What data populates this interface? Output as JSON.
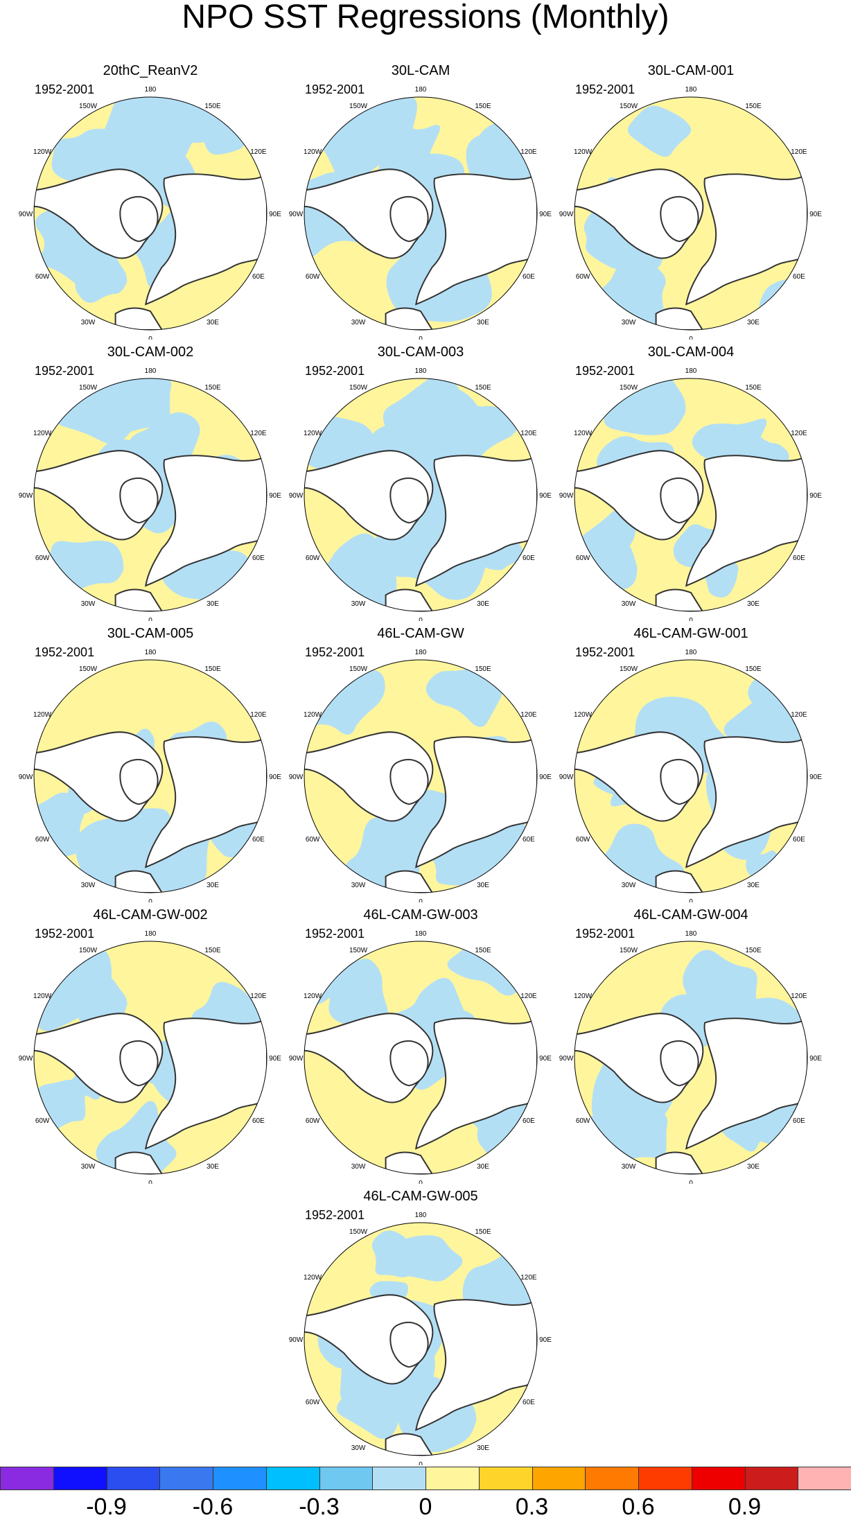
{
  "title": "NPO SST Regressions (Monthly)",
  "panels": [
    {
      "name": "20thC_ReanV2",
      "period": "1952-2001"
    },
    {
      "name": "30L-CAM",
      "period": "1952-2001"
    },
    {
      "name": "30L-CAM-001",
      "period": "1952-2001"
    },
    {
      "name": "30L-CAM-002",
      "period": "1952-2001"
    },
    {
      "name": "30L-CAM-003",
      "period": "1952-2001"
    },
    {
      "name": "30L-CAM-004",
      "period": "1952-2001"
    },
    {
      "name": "30L-CAM-005",
      "period": "1952-2001"
    },
    {
      "name": "46L-CAM-GW",
      "period": "1952-2001"
    },
    {
      "name": "46L-CAM-GW-001",
      "period": "1952-2001"
    },
    {
      "name": "46L-CAM-GW-002",
      "period": "1952-2001"
    },
    {
      "name": "46L-CAM-GW-003",
      "period": "1952-2001"
    },
    {
      "name": "46L-CAM-GW-004",
      "period": "1952-2001"
    },
    {
      "name": "46L-CAM-GW-005",
      "period": "1952-2001"
    }
  ],
  "longitude_labels": [
    "180",
    "150E",
    "120E",
    "90E",
    "60E",
    "30E",
    "0",
    "30W",
    "60W",
    "90W",
    "120W",
    "150W"
  ],
  "colorbar": {
    "colors": [
      "#8a2be2",
      "#1010ff",
      "#2a4ef0",
      "#3a78f0",
      "#1e90ff",
      "#00bfff",
      "#6ec8f0",
      "#b3dff5",
      "#fff59d",
      "#ffd42a",
      "#ffa500",
      "#ff7a00",
      "#ff3c00",
      "#ee0000",
      "#cc1c1c",
      "#ffb3b3"
    ],
    "tick_labels": [
      "-0.9",
      "-0.6",
      "-0.3",
      "0",
      "0.3",
      "0.6",
      "0.9"
    ]
  }
}
